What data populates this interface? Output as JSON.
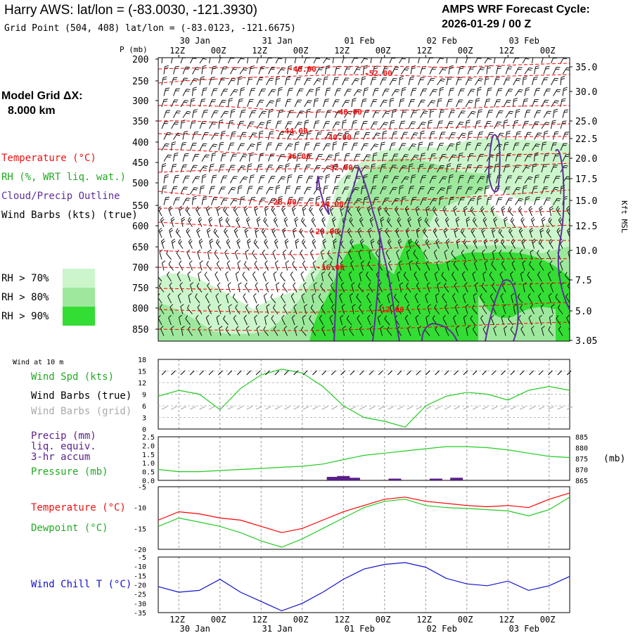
{
  "header": {
    "title": "Harry AWS:  lat/lon = (-83.0030, -121.3930)",
    "subtitle": "Grid Point (504, 408) lat/lon = (-83.0123, -121.6675)",
    "cycle_line1": "AMPS WRF Forecast Cycle:",
    "cycle_line2": "2026-01-29 / 00  Z",
    "grid_line1": "Model Grid ΔX:",
    "grid_line2": "8.000 km"
  },
  "legend": {
    "temperature": "Temperature (°C)",
    "rh": "RH (%, WRT liq. wat.)",
    "cloud": "Cloud/Precip Outline",
    "wind": "Wind Barbs (kts) (true)",
    "rh_levels": [
      {
        "label": "RH > 70%",
        "color": "#ccf5cc"
      },
      {
        "label": "RH > 80%",
        "color": "#9ee89e"
      },
      {
        "label": "RH > 90%",
        "color": "#33dd33"
      }
    ]
  },
  "colors": {
    "temperature": "#ff0000",
    "temp_label": "#ee1111",
    "rh": "#22bb22",
    "cloud": "#5e2f9a",
    "dewpoint": "#22cc22",
    "windchill": "#1111cc",
    "gridbarb": "#aaaaaa",
    "precip": "#5a1f8a"
  },
  "time_axis": {
    "top_labels": [
      "12Z",
      "00Z",
      "12Z",
      "00Z",
      "12Z",
      "00Z",
      "12Z",
      "00Z",
      "12Z",
      "00Z"
    ],
    "date_labels": [
      "30 Jan",
      "31 Jan",
      "01 Feb",
      "02 Feb",
      "03 Feb"
    ]
  },
  "chart_data": [
    {
      "type": "heatmap",
      "name": "upper-air cross section",
      "ylabel": "P (mb)",
      "y2label": "Kft MSL",
      "pressure_ticks": [
        "200",
        "250",
        "300",
        "350",
        "400",
        "450",
        "500",
        "550",
        "600",
        "650",
        "700",
        "750",
        "800",
        "850"
      ],
      "height_ticks_kft": [
        "35.0",
        "30.0",
        "25.0",
        "22.5",
        "20.0",
        "17.5",
        "15.0",
        "12.5",
        "10.0",
        "7.5",
        "5.0",
        "3.05"
      ],
      "temperature_contour_labels": [
        "-48.00",
        "-52.00",
        "-48.00",
        "-44.00",
        "-40.00",
        "-36.00",
        "-32.00",
        "-28.00",
        "-24.00",
        "-20.00",
        "-16.00",
        "-12.00"
      ]
    },
    {
      "type": "line",
      "name": "Wind at 10 m",
      "title": "Wind at 10 m",
      "legend": [
        "Wind Spd (kts)",
        "Wind Barbs (true)",
        "Wind Barbs (grid)"
      ],
      "ylim": [
        0,
        18
      ],
      "yticks": [
        "0",
        "3",
        "6",
        "9",
        "12",
        "15",
        "18"
      ],
      "x_hours": [
        0,
        6,
        12,
        18,
        24,
        30,
        36,
        42,
        48,
        54,
        60,
        66,
        72,
        78,
        84,
        90,
        96,
        102,
        108,
        114,
        120
      ],
      "wind_speed_kts": [
        8.5,
        10,
        9,
        5,
        10.5,
        14,
        15.5,
        14.5,
        11,
        6,
        3,
        2,
        0.5,
        6,
        8.5,
        9.5,
        9,
        7.5,
        10,
        11,
        10
      ]
    },
    {
      "type": "line",
      "name": "Precip and Pressure",
      "legend": [
        "Precip (mm)",
        "liq. equiv.",
        "3-hr accum",
        "Pressure (mb)"
      ],
      "precip_yticks": [
        "0.0",
        "0.5",
        "1.0",
        "1.5",
        "2.0",
        "2.5"
      ],
      "pressure_yticks": [
        "865",
        "870",
        "875",
        "880",
        "885"
      ],
      "y2label": "(mb)",
      "x_hours": [
        0,
        6,
        12,
        18,
        24,
        30,
        36,
        42,
        48,
        54,
        60,
        66,
        72,
        78,
        84,
        90,
        96,
        102,
        108,
        114,
        120
      ],
      "pressure_mb": [
        870,
        869,
        869,
        869.5,
        870,
        870.5,
        871,
        871.5,
        872.5,
        874.5,
        876.5,
        877.5,
        878.5,
        879.5,
        880.5,
        880.5,
        880,
        879,
        877.5,
        876,
        875.5
      ],
      "precip_x_hours": [
        51,
        54,
        57,
        69,
        81,
        87
      ],
      "precip_mm": [
        0.2,
        0.25,
        0.15,
        0.1,
        0.1,
        0.15
      ]
    },
    {
      "type": "line",
      "name": "Temperature and Dewpoint",
      "legend": [
        "Temperature (°C)",
        "Dewpoint (°C)"
      ],
      "ylim": [
        -20,
        -5
      ],
      "yticks": [
        "-5",
        "-10",
        "-15",
        "-20"
      ],
      "x_hours": [
        0,
        6,
        12,
        18,
        24,
        30,
        36,
        42,
        48,
        54,
        60,
        66,
        72,
        78,
        84,
        90,
        96,
        102,
        108,
        114,
        120
      ],
      "temperature_c": [
        -13,
        -11,
        -11.5,
        -12.5,
        -13,
        -14.5,
        -16,
        -15,
        -13,
        -11,
        -9.5,
        -8,
        -7.5,
        -8.5,
        -9,
        -9.5,
        -9.8,
        -9.5,
        -10,
        -8,
        -6.5
      ],
      "dewpoint_c": [
        -14.5,
        -12.5,
        -13.5,
        -14.5,
        -16,
        -18,
        -19.5,
        -17.5,
        -15,
        -12.5,
        -10,
        -8.5,
        -8,
        -9.5,
        -10,
        -10.2,
        -10.5,
        -10.8,
        -12,
        -10.5,
        -7.5
      ]
    },
    {
      "type": "line",
      "name": "Wind Chill",
      "legend": [
        "Wind Chill T (°C)"
      ],
      "ylim": [
        -35,
        -5
      ],
      "yticks": [
        "-5",
        "-10",
        "-15",
        "-20",
        "-25",
        "-30",
        "-35"
      ],
      "x_hours": [
        0,
        6,
        12,
        18,
        24,
        30,
        36,
        42,
        48,
        54,
        60,
        66,
        72,
        78,
        84,
        90,
        96,
        102,
        108,
        114,
        120
      ],
      "windchill_c": [
        -21,
        -24,
        -23,
        -17,
        -24,
        -29,
        -34,
        -30,
        -24,
        -17,
        -11.5,
        -9,
        -8,
        -10.5,
        -16.5,
        -19.5,
        -20.5,
        -18,
        -23,
        -20.5,
        -15.5
      ]
    }
  ]
}
